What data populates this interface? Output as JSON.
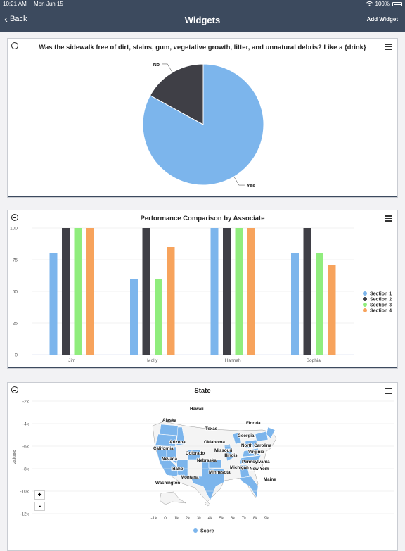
{
  "status": {
    "time": "10:21 AM",
    "date": "Mon Jun 15",
    "battery": "100%"
  },
  "nav": {
    "back_label": "Back",
    "title": "Widgets",
    "add_label": "Add Widget"
  },
  "widgets": [
    {
      "title": "Was the sidewalk free of dirt, stains, gum, vegetative growth, litter, and unnatural debris? Like a {drink}"
    },
    {
      "title": "Performance Comparison by Associate"
    },
    {
      "title": "State",
      "ylabel": "Values",
      "legend_label": "Score",
      "zoom_in": "+",
      "zoom_out": "-"
    }
  ],
  "colors": {
    "blue": "#7cb5ec",
    "dark": "#3f3f46",
    "green": "#90ed7d",
    "orange": "#f7a35c",
    "nav": "#3c4a5e"
  },
  "chart_data": [
    {
      "type": "pie",
      "title": "Was the sidewalk free of dirt, stains, gum, vegetative growth, litter, and unnatural debris? Like a {drink}",
      "slices": [
        {
          "label": "Yes",
          "value": 83,
          "color": "#7cb5ec"
        },
        {
          "label": "No",
          "value": 17,
          "color": "#3f3f46"
        }
      ]
    },
    {
      "type": "bar",
      "title": "Performance Comparison by Associate",
      "categories": [
        "Jim",
        "Molly",
        "Hannah",
        "Sophia"
      ],
      "ylim": [
        0,
        100
      ],
      "yticks": [
        "0",
        "25",
        "50",
        "75",
        "100"
      ],
      "legend_position": "right",
      "series": [
        {
          "name": "Section 1",
          "color": "#7cb5ec",
          "values": [
            80,
            60,
            100,
            80
          ]
        },
        {
          "name": "Section 2",
          "color": "#3f3f46",
          "values": [
            100,
            100,
            100,
            100
          ]
        },
        {
          "name": "Section 3",
          "color": "#90ed7d",
          "values": [
            100,
            60,
            100,
            80
          ]
        },
        {
          "name": "Section 4",
          "color": "#f7a35c",
          "values": [
            100,
            85,
            100,
            71
          ]
        }
      ]
    },
    {
      "type": "map",
      "title": "State",
      "ylabel": "Values",
      "legend": [
        "Score"
      ],
      "xticks": [
        "-1k",
        "0",
        "1k",
        "2k",
        "3k",
        "4k",
        "5k",
        "6k",
        "7k",
        "8k",
        "9k"
      ],
      "yticks": [
        "-2k",
        "-4k",
        "-6k",
        "-8k",
        "-10k",
        "-12k"
      ],
      "labels": [
        "Hawaii",
        "Alaska",
        "Florida",
        "Texas",
        "Georgia",
        "Arizona",
        "Oklahoma",
        "North Carolina",
        "California",
        "Missouri",
        "Virginia",
        "Colorado",
        "Illinois",
        "Nevada",
        "Nebraska",
        "Pennsylvania",
        "Idaho",
        "Michigan",
        "New York",
        "Minnesota",
        "Montana",
        "Maine",
        "Washington"
      ]
    }
  ]
}
